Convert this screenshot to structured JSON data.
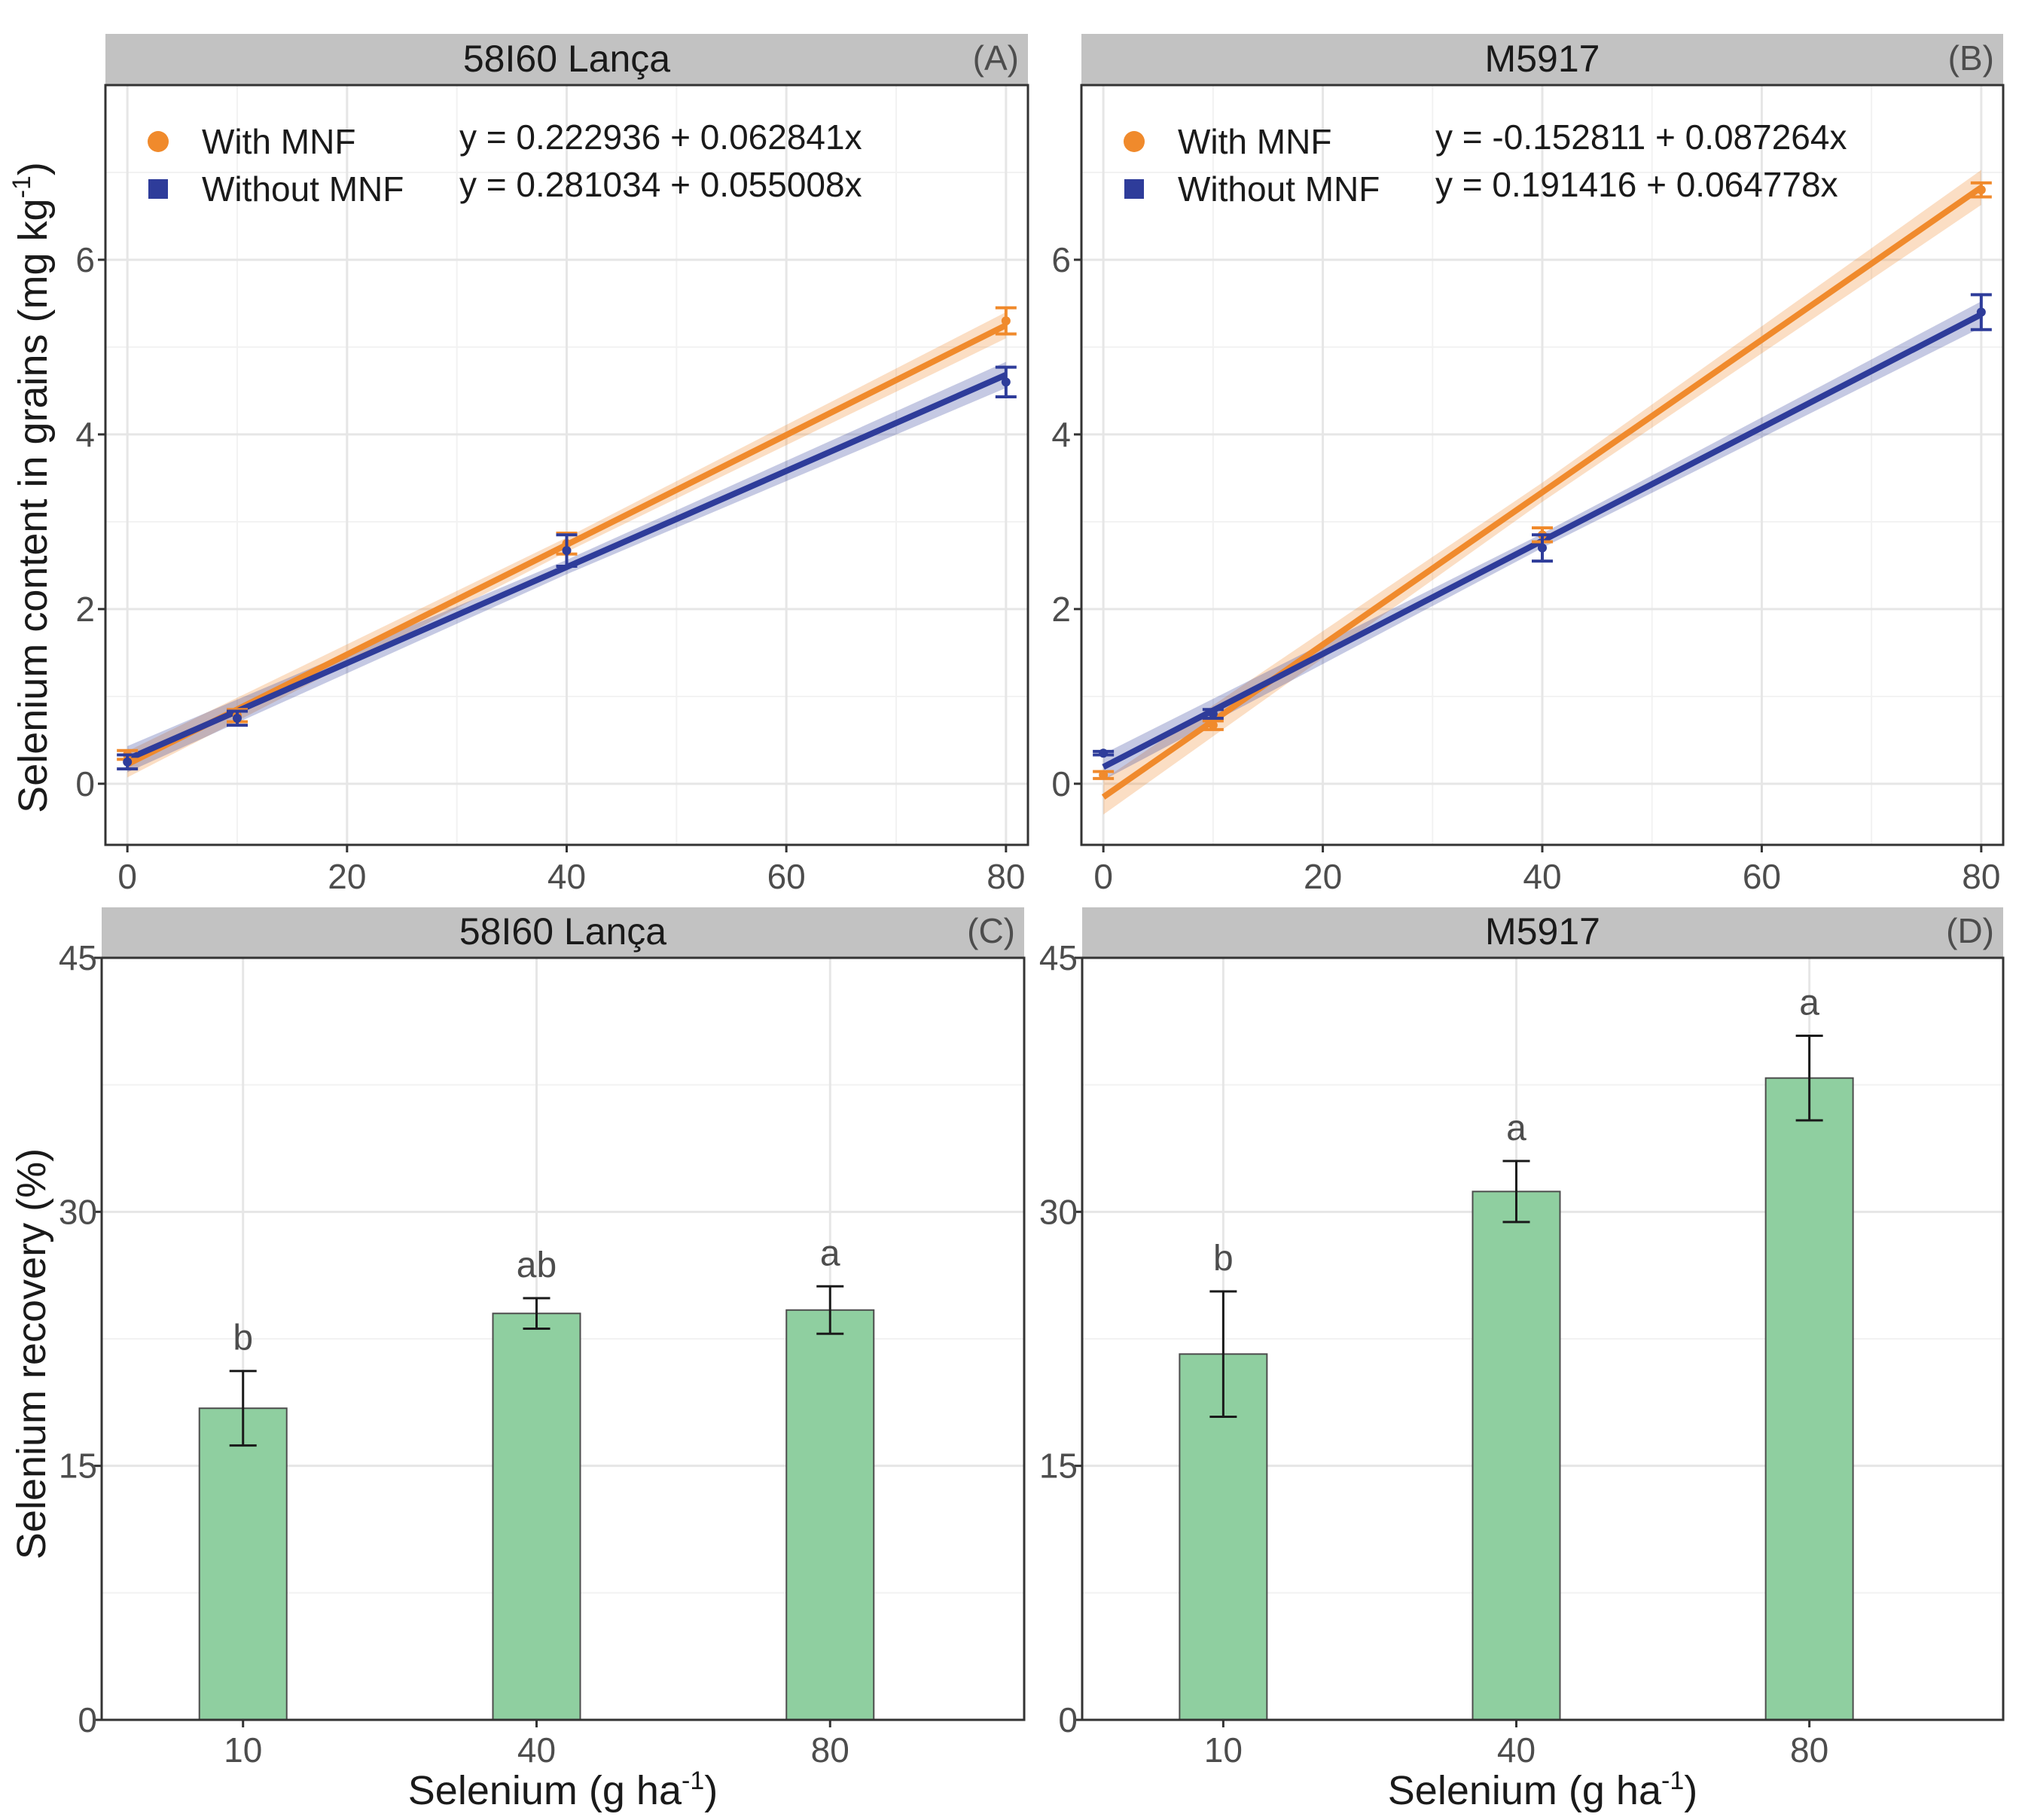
{
  "chart_data": [
    {
      "id": "A",
      "type": "line",
      "title": "58I60 Lança",
      "tag": "(A)",
      "xlabel": "",
      "ylabel": "Selenium content in grains (mg kg-1)",
      "ylabel_parts": {
        "main": "Selenium content in grains (mg kg",
        "sup": "-1",
        "close": ")"
      },
      "xlim": [
        -2,
        82
      ],
      "ylim": [
        -0.7,
        8.0
      ],
      "x_ticks": [
        0,
        20,
        40,
        60,
        80
      ],
      "x_tick_labels": [
        "0",
        "20",
        "40",
        "60",
        "80"
      ],
      "y_ticks": [
        0,
        2,
        4,
        6
      ],
      "y_tick_labels": [
        "0",
        "2",
        "4",
        "6"
      ],
      "legend_position": "top-left",
      "series": [
        {
          "name": "With MNF",
          "marker": "circle",
          "color": "#f08a2c",
          "equation": "y = 0.222936 + 0.062841x",
          "intercept": 0.222936,
          "slope": 0.062841,
          "band": 0.15,
          "points": [
            {
              "x": 0,
              "y": 0.33,
              "err": 0.05
            },
            {
              "x": 10,
              "y": 0.78,
              "err": 0.07
            },
            {
              "x": 40,
              "y": 2.75,
              "err": 0.12
            },
            {
              "x": 80,
              "y": 5.3,
              "err": 0.15
            }
          ]
        },
        {
          "name": "Without MNF",
          "marker": "square",
          "color": "#2e3c9a",
          "equation": "y = 0.281034 + 0.055008x",
          "intercept": 0.281034,
          "slope": 0.055008,
          "band": 0.15,
          "points": [
            {
              "x": 0,
              "y": 0.25,
              "err": 0.08
            },
            {
              "x": 10,
              "y": 0.75,
              "err": 0.08
            },
            {
              "x": 40,
              "y": 2.67,
              "err": 0.18
            },
            {
              "x": 80,
              "y": 4.6,
              "err": 0.17
            }
          ]
        }
      ]
    },
    {
      "id": "B",
      "type": "line",
      "title": "M5917",
      "tag": "(B)",
      "xlabel": "",
      "ylabel": "",
      "xlim": [
        -2,
        82
      ],
      "ylim": [
        -0.7,
        8.0
      ],
      "x_ticks": [
        0,
        20,
        40,
        60,
        80
      ],
      "x_tick_labels": [
        "0",
        "20",
        "40",
        "60",
        "80"
      ],
      "y_ticks": [
        0,
        2,
        4,
        6
      ],
      "y_tick_labels": [
        "0",
        "2",
        "4",
        "6"
      ],
      "legend_position": "top-left",
      "series": [
        {
          "name": "With MNF",
          "marker": "circle",
          "color": "#f08a2c",
          "equation": "y = -0.152811 + 0.087264x",
          "intercept": -0.152811,
          "slope": 0.087264,
          "band": 0.2,
          "points": [
            {
              "x": 0,
              "y": 0.1,
              "err": 0.04
            },
            {
              "x": 10,
              "y": 0.67,
              "err": 0.05
            },
            {
              "x": 40,
              "y": 2.85,
              "err": 0.08
            },
            {
              "x": 80,
              "y": 6.8,
              "err": 0.08
            }
          ]
        },
        {
          "name": "Without MNF",
          "marker": "square",
          "color": "#2e3c9a",
          "equation": "y = 0.191416 + 0.064778x",
          "intercept": 0.191416,
          "slope": 0.064778,
          "band": 0.15,
          "points": [
            {
              "x": 0,
              "y": 0.35,
              "err": 0.02
            },
            {
              "x": 10,
              "y": 0.8,
              "err": 0.05
            },
            {
              "x": 40,
              "y": 2.7,
              "err": 0.15
            },
            {
              "x": 80,
              "y": 5.4,
              "err": 0.2
            }
          ]
        }
      ]
    },
    {
      "id": "C",
      "type": "bar",
      "title": "58I60 Lança",
      "tag": "(C)",
      "xlabel": "Selenium (g ha-1)",
      "xlabel_parts": {
        "main": "Selenium (g ha",
        "sup": "-1",
        "close": ")"
      },
      "ylabel": "Selenium recovery (%)",
      "ylim": [
        0,
        45
      ],
      "y_ticks": [
        0,
        15,
        30,
        45
      ],
      "y_tick_labels": [
        "0",
        "15",
        "30",
        "45"
      ],
      "bar_color": "#8fcfa0",
      "categories": [
        "10",
        "40",
        "80"
      ],
      "values": [
        18.4,
        24.0,
        24.2
      ],
      "errors": [
        2.2,
        0.9,
        1.4
      ],
      "letters": [
        "b",
        "ab",
        "a"
      ]
    },
    {
      "id": "D",
      "type": "bar",
      "title": "M5917",
      "tag": "(D)",
      "xlabel": "Selenium (g ha-1)",
      "xlabel_parts": {
        "main": "Selenium (g ha",
        "sup": "-1",
        "close": ")"
      },
      "ylabel": "",
      "ylim": [
        0,
        45
      ],
      "y_ticks": [
        0,
        15,
        30,
        45
      ],
      "y_tick_labels": [
        "0",
        "15",
        "30",
        "45"
      ],
      "bar_color": "#8fcfa0",
      "categories": [
        "10",
        "40",
        "80"
      ],
      "values": [
        21.6,
        31.2,
        37.9
      ],
      "errors": [
        3.7,
        1.8,
        2.5
      ],
      "letters": [
        "b",
        "a",
        "a"
      ]
    }
  ]
}
